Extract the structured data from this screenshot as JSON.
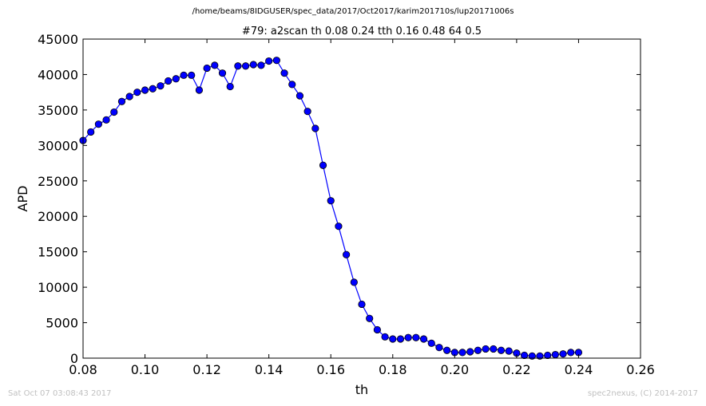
{
  "suptitle": "/home/beams/8IDGUSER/spec_data/2017/Oct2017/karim201710s/lup20171006s",
  "footer": {
    "left": "Sat Oct 07 03:08:43 2017",
    "right": "spec2nexus, (C) 2014-2017"
  },
  "chart_data": {
    "type": "line",
    "title": "#79: a2scan  th 0.08 0.24  tth 0.16 0.48  64 0.5",
    "xlabel": "th",
    "ylabel": "APD",
    "xlim": [
      0.08,
      0.26
    ],
    "ylim": [
      0,
      45000
    ],
    "xticks": [
      "0.08",
      "0.10",
      "0.12",
      "0.14",
      "0.16",
      "0.18",
      "0.20",
      "0.22",
      "0.24",
      "0.26"
    ],
    "yticks": [
      "0",
      "5000",
      "10000",
      "15000",
      "20000",
      "25000",
      "30000",
      "35000",
      "40000",
      "45000"
    ],
    "grid": false,
    "legend": false,
    "series": [
      {
        "color": "#0000ff",
        "marker": "circle",
        "x": [
          0.08,
          0.0825,
          0.085,
          0.0875,
          0.09,
          0.0925,
          0.095,
          0.0975,
          0.1,
          0.1025,
          0.105,
          0.1075,
          0.11,
          0.1125,
          0.115,
          0.1175,
          0.12,
          0.1225,
          0.125,
          0.1275,
          0.13,
          0.1325,
          0.135,
          0.1375,
          0.14,
          0.1425,
          0.145,
          0.1475,
          0.15,
          0.1525,
          0.155,
          0.1575,
          0.16,
          0.1625,
          0.165,
          0.1675,
          0.17,
          0.1725,
          0.175,
          0.1775,
          0.18,
          0.1825,
          0.185,
          0.1875,
          0.19,
          0.1925,
          0.195,
          0.1975,
          0.2,
          0.2025,
          0.205,
          0.2075,
          0.21,
          0.2125,
          0.215,
          0.2175,
          0.22,
          0.2225,
          0.225,
          0.2275,
          0.23,
          0.2325,
          0.235,
          0.2375,
          0.24
        ],
        "y": [
          30700,
          31900,
          33000,
          33600,
          34700,
          36200,
          36900,
          37500,
          37800,
          38000,
          38400,
          39100,
          39400,
          39900,
          39900,
          37800,
          40900,
          41300,
          40200,
          38300,
          41200,
          41200,
          41400,
          41300,
          41900,
          42000,
          40200,
          38600,
          37000,
          34800,
          32400,
          27200,
          22200,
          18600,
          14600,
          10700,
          7600,
          5600,
          4000,
          3000,
          2700,
          2700,
          2900,
          2900,
          2700,
          2100,
          1500,
          1100,
          800,
          800,
          900,
          1100,
          1300,
          1300,
          1100,
          1000,
          700,
          400,
          300,
          300,
          400,
          500,
          600,
          800,
          800
        ]
      }
    ]
  }
}
